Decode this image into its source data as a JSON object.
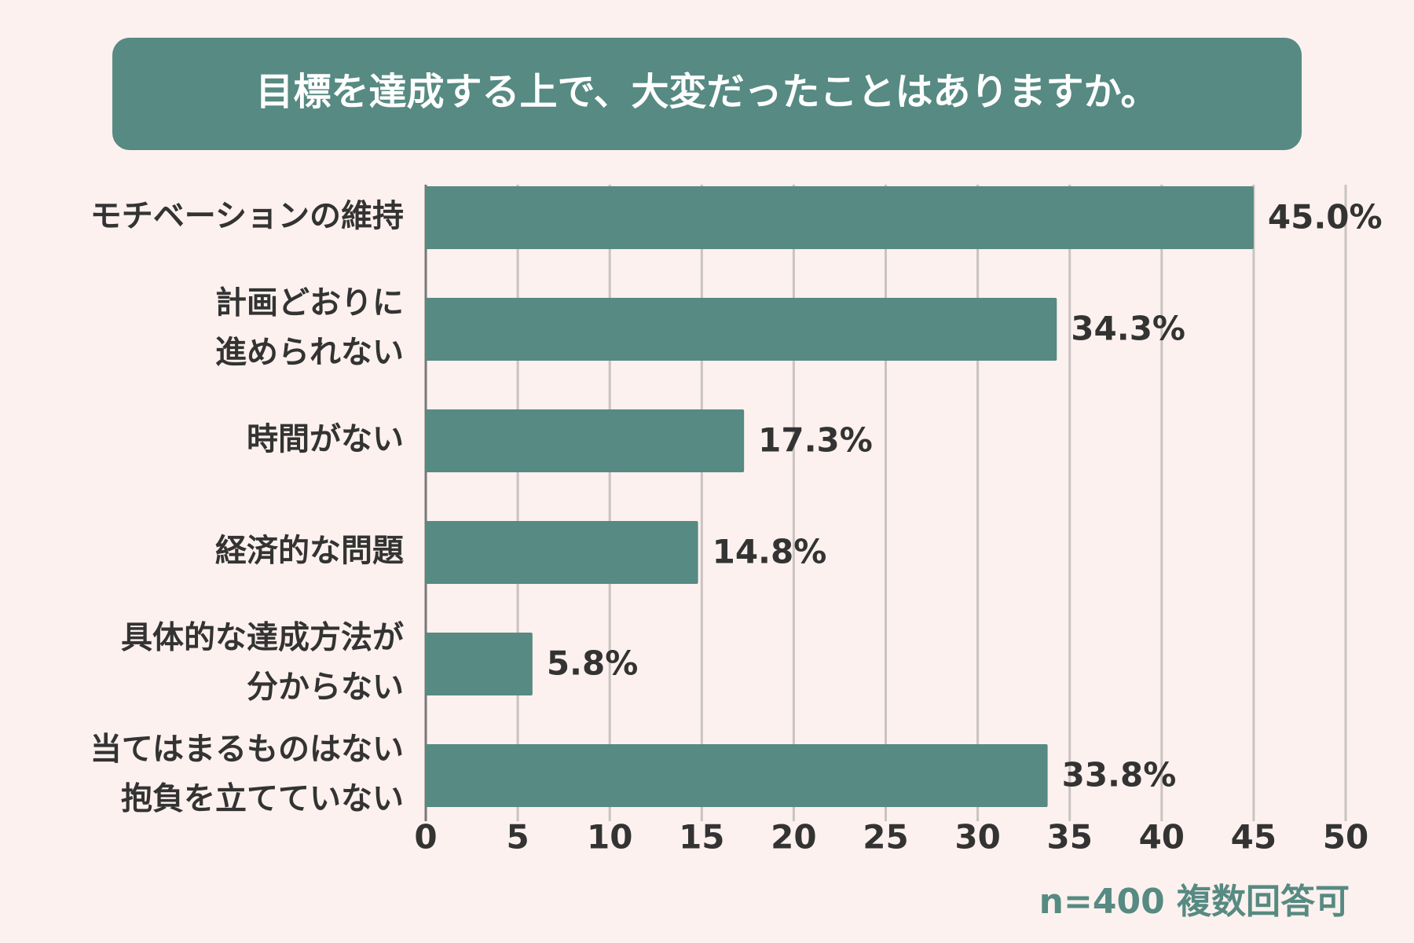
{
  "chart_data": {
    "type": "bar",
    "orientation": "horizontal",
    "title": "目標を達成する上で、大変だったことはありますか。",
    "categories": [
      [
        "モチベーションの維持"
      ],
      [
        "計画どおりに",
        "進められない"
      ],
      [
        "時間がない"
      ],
      [
        "経済的な問題"
      ],
      [
        "具体的な達成方法が",
        "分からない"
      ],
      [
        "当てはまるものはない",
        "抱負を立てていない"
      ]
    ],
    "values": [
      45.0,
      34.3,
      17.3,
      14.8,
      5.8,
      33.8
    ],
    "value_labels": [
      "45.0%",
      "34.3%",
      "17.3%",
      "14.8%",
      "5.8%",
      "33.8%"
    ],
    "color": "#568a82",
    "xlim": [
      0,
      50
    ],
    "xticks": [
      0,
      5,
      10,
      15,
      20,
      25,
      30,
      35,
      40,
      45,
      50
    ],
    "grid": true,
    "note": "n=400 複数回答可"
  }
}
